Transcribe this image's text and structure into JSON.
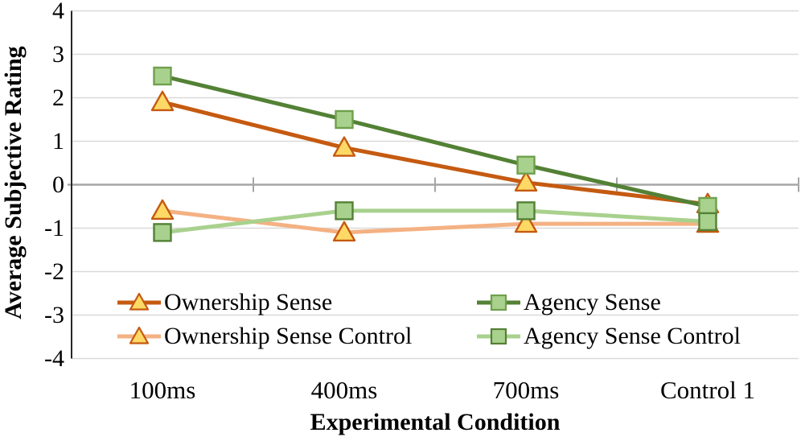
{
  "chart_data": {
    "type": "line",
    "title": "",
    "xlabel": "Experimental Condition",
    "ylabel": "Average Subjective Rating",
    "categories": [
      "100ms",
      "400ms",
      "700ms",
      "Control 1"
    ],
    "ylim": [
      -4,
      4
    ],
    "yticks": [
      4,
      3,
      2,
      1,
      0,
      -1,
      -2,
      -3,
      -4
    ],
    "grid": true,
    "legend_position": "inside bottom-left, 2 columns, no border",
    "series": [
      {
        "name": "Ownership Sense",
        "marker": "triangle",
        "line_color": "#C55A11",
        "marker_fill": "#FFD966",
        "marker_border": "#C55A11",
        "values": [
          1.9,
          0.85,
          0.05,
          -0.45
        ]
      },
      {
        "name": "Agency Sense",
        "marker": "square",
        "line_color": "#538135",
        "marker_fill": "#A9D18E",
        "marker_border": "#6FA04C",
        "values": [
          2.5,
          1.5,
          0.45,
          -0.5
        ]
      },
      {
        "name": "Ownership Sense Control",
        "marker": "triangle",
        "line_color": "#F4B183",
        "marker_fill": "#FFD966",
        "marker_border": "#C55A11",
        "values": [
          -0.6,
          -1.1,
          -0.9,
          -0.9
        ]
      },
      {
        "name": "Agency Sense Control",
        "marker": "square",
        "line_color": "#A9D18E",
        "marker_fill": "#A9D18E",
        "marker_border": "#538135",
        "values": [
          -1.1,
          -0.6,
          -0.6,
          -0.85
        ]
      }
    ],
    "colors": {
      "background": "#FFFFFF",
      "gridline": "#D9D9D9",
      "zero_line": "#A6A6A6",
      "axis_line": "#262626",
      "tick_mark": "#A6A6A6",
      "text": "#000000"
    }
  }
}
